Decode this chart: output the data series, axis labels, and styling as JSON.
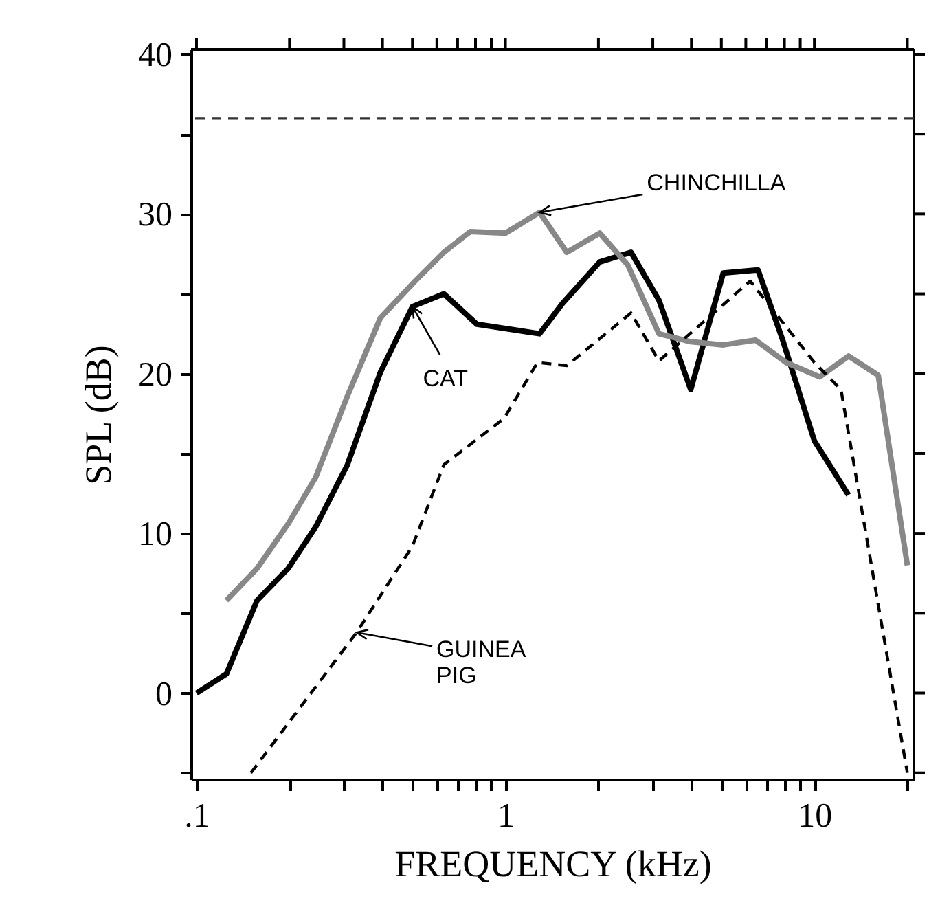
{
  "chart_data": {
    "type": "line",
    "xlabel": "FREQUENCY (kHz)",
    "ylabel": "SPL (dB)",
    "log": "x",
    "xlim": [
      0.096,
      21
    ],
    "ylim": [
      -5.4,
      40.3
    ],
    "xticks": [
      {
        "value": 0.1,
        "label": ".1"
      },
      {
        "value": 0.2,
        "label": null
      },
      {
        "value": 0.3,
        "label": null
      },
      {
        "value": 0.4,
        "label": null
      },
      {
        "value": 0.5,
        "label": null
      },
      {
        "value": 0.6,
        "label": null
      },
      {
        "value": 0.7,
        "label": null
      },
      {
        "value": 0.8,
        "label": null
      },
      {
        "value": 0.9,
        "label": null
      },
      1,
      {
        "value": 2,
        "label": null
      },
      {
        "value": 3,
        "label": null
      },
      {
        "value": 4,
        "label": null
      },
      {
        "value": 5,
        "label": null
      },
      {
        "value": 6,
        "label": null
      },
      {
        "value": 7,
        "label": null
      },
      {
        "value": 8,
        "label": null
      },
      {
        "value": 9,
        "label": null
      },
      10,
      {
        "value": 20,
        "label": null
      }
    ],
    "yticks": [
      {
        "value": -5,
        "label": null
      },
      0,
      {
        "value": 5,
        "label": null
      },
      10,
      {
        "value": 15,
        "label": null
      },
      20,
      {
        "value": 25,
        "label": null
      },
      30,
      {
        "value": 35,
        "label": null
      },
      40
    ],
    "grid": false,
    "marker": "none",
    "series": [
      {
        "color": "#000000",
        "line_style": "solid",
        "x": [
          0.1,
          0.125,
          0.157,
          0.198,
          0.243,
          0.308,
          0.394,
          0.5,
          0.632,
          0.808,
          1.29,
          1.53,
          2.02,
          2.55,
          3.14,
          3.98,
          5.07,
          6.57,
          7.9,
          10.0,
          12.9
        ],
        "values": [
          0,
          1.2,
          5.8,
          7.8,
          10.4,
          14.3,
          20.1,
          24.2,
          25.0,
          23.1,
          22.5,
          24.4,
          27.0,
          27.6,
          24.6,
          19.0,
          26.3,
          26.5,
          22.1,
          15.8,
          12.4
        ]
      },
      {
        "color": "#888888",
        "line_style": "solid",
        "x": [
          0.125,
          0.157,
          0.198,
          0.243,
          0.308,
          0.394,
          0.51,
          0.632,
          0.77,
          1.0,
          1.29,
          1.58,
          2.02,
          2.49,
          3.14,
          3.98,
          5.07,
          6.45,
          8.1,
          10.4,
          12.9,
          16.1,
          20
        ],
        "values": [
          5.8,
          7.8,
          10.6,
          13.5,
          18.6,
          23.5,
          25.8,
          27.6,
          28.9,
          28.8,
          30.1,
          27.6,
          28.8,
          26.8,
          22.5,
          22.0,
          21.8,
          22.1,
          20.7,
          19.8,
          21.1,
          19.9,
          8
        ]
      },
      {
        "color": "#000000",
        "line_style": "dashed",
        "x": [
          0.15,
          0.33,
          0.5,
          0.632,
          0.99,
          1.27,
          1.58,
          2.55,
          3.14,
          6.2,
          10.0,
          12.2,
          20
        ],
        "values": [
          -5,
          3.8,
          9.2,
          14.3,
          17.2,
          20.7,
          20.5,
          23.8,
          20.8,
          25.8,
          20.7,
          19.0,
          -5
        ]
      }
    ],
    "ref_lines": [
      {
        "axis": "y",
        "value": 36,
        "label": null,
        "color": "#333333",
        "line_style": "dashed"
      }
    ],
    "annotations": [
      {
        "text": "CHINCHILLA",
        "x": 1.29,
        "y": 30.1
      },
      {
        "text": "CAT",
        "x": 0.5,
        "y": 24.2
      },
      {
        "text": "GUINEA PIG",
        "x": 0.33,
        "y": 3.8
      }
    ]
  }
}
